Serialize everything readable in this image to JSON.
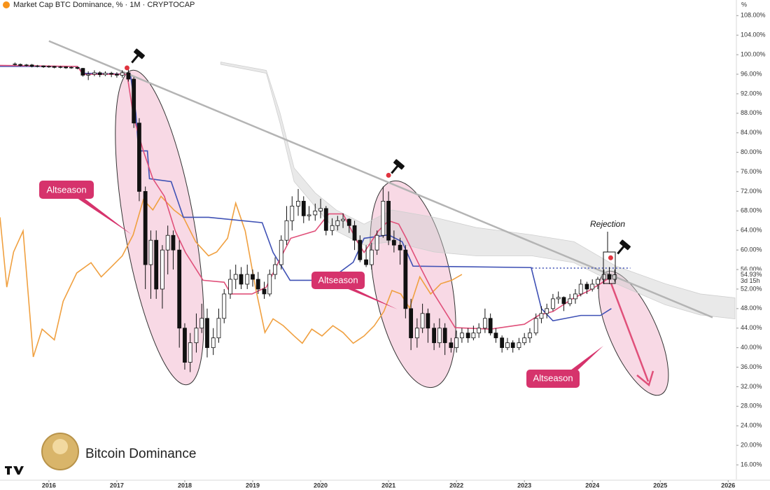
{
  "header": {
    "title": "Market Cap BTC Dominance, % · 1M · CRYPTOCAP"
  },
  "chart_data": {
    "type": "candlestick",
    "axis_unit": "%",
    "up_color": "#ffffff",
    "down_color": "#111111",
    "x": [
      2015.5,
      2015.58,
      2015.67,
      2015.75,
      2015.83,
      2015.92,
      2016.0,
      2016.08,
      2016.17,
      2016.25,
      2016.33,
      2016.42,
      2016.5,
      2016.58,
      2016.67,
      2016.75,
      2016.83,
      2016.92,
      2017.0,
      2017.08,
      2017.17,
      2017.25,
      2017.33,
      2017.42,
      2017.5,
      2017.58,
      2017.67,
      2017.75,
      2017.83,
      2017.92,
      2018.0,
      2018.08,
      2018.17,
      2018.25,
      2018.33,
      2018.42,
      2018.5,
      2018.58,
      2018.67,
      2018.75,
      2018.83,
      2018.92,
      2019.0,
      2019.08,
      2019.17,
      2019.25,
      2019.33,
      2019.42,
      2019.5,
      2019.58,
      2019.67,
      2019.75,
      2019.83,
      2019.92,
      2020.0,
      2020.08,
      2020.17,
      2020.25,
      2020.33,
      2020.42,
      2020.5,
      2020.58,
      2020.67,
      2020.75,
      2020.83,
      2020.92,
      2021.0,
      2021.08,
      2021.17,
      2021.25,
      2021.33,
      2021.42,
      2021.5,
      2021.58,
      2021.67,
      2021.75,
      2021.83,
      2021.92,
      2022.0,
      2022.08,
      2022.17,
      2022.25,
      2022.33,
      2022.42,
      2022.5,
      2022.58,
      2022.67,
      2022.75,
      2022.83,
      2022.92,
      2023.0,
      2023.08,
      2023.17,
      2023.25,
      2023.33,
      2023.42,
      2023.5,
      2023.58,
      2023.67,
      2023.75,
      2023.83,
      2023.92,
      2024.0,
      2024.08,
      2024.17,
      2024.25,
      2024.33
    ],
    "ohlc": [
      [
        98.1,
        98.4,
        97.8,
        98.0
      ],
      [
        98.0,
        98.2,
        97.6,
        97.8
      ],
      [
        97.8,
        98.1,
        97.6,
        97.9
      ],
      [
        97.9,
        98.1,
        97.4,
        97.6
      ],
      [
        97.6,
        97.9,
        97.4,
        97.7
      ],
      [
        97.7,
        97.8,
        97.3,
        97.5
      ],
      [
        97.5,
        97.8,
        97.3,
        97.6
      ],
      [
        97.6,
        97.7,
        97.2,
        97.4
      ],
      [
        97.4,
        97.7,
        97.2,
        97.5
      ],
      [
        97.5,
        97.6,
        97.1,
        97.3
      ],
      [
        97.3,
        97.6,
        97.1,
        97.4
      ],
      [
        97.4,
        97.5,
        97.0,
        97.2
      ],
      [
        97.2,
        97.3,
        95.5,
        95.8
      ],
      [
        95.8,
        96.6,
        94.8,
        96.0
      ],
      [
        96.0,
        96.8,
        95.6,
        96.3
      ],
      [
        96.3,
        96.6,
        95.4,
        95.9
      ],
      [
        95.9,
        96.6,
        95.6,
        96.2
      ],
      [
        96.2,
        96.5,
        95.4,
        96.0
      ],
      [
        96.0,
        96.4,
        95.3,
        95.8
      ],
      [
        95.8,
        96.8,
        95.3,
        96.3
      ],
      [
        96.3,
        97.3,
        94.5,
        95.0
      ],
      [
        95.0,
        95.4,
        85.0,
        86.0
      ],
      [
        86.0,
        87.0,
        70.0,
        72.0
      ],
      [
        72.0,
        73.0,
        52.0,
        57.0
      ],
      [
        57.0,
        64.0,
        50.0,
        62.0
      ],
      [
        62.0,
        64.0,
        50.0,
        52.0
      ],
      [
        52.0,
        61.0,
        48.0,
        60.0
      ],
      [
        60.0,
        65.0,
        55.0,
        63.0
      ],
      [
        63.0,
        64.0,
        56.0,
        60.0
      ],
      [
        60.0,
        62.0,
        40.0,
        44.0
      ],
      [
        44.0,
        45.0,
        35.5,
        37.0
      ],
      [
        37.0,
        43.0,
        35.0,
        41.0
      ],
      [
        41.0,
        47.0,
        39.0,
        44.0
      ],
      [
        44.0,
        49.0,
        43.0,
        46.0
      ],
      [
        46.0,
        48.0,
        38.0,
        40.0
      ],
      [
        40.0,
        44.0,
        38.5,
        42.0
      ],
      [
        42.0,
        48.0,
        41.0,
        46.0
      ],
      [
        46.0,
        52.0,
        45.0,
        51.0
      ],
      [
        51.0,
        56.0,
        50.0,
        54.0
      ],
      [
        54.0,
        57.0,
        52.0,
        55.0
      ],
      [
        55.0,
        56.5,
        52.0,
        53.0
      ],
      [
        53.0,
        57.0,
        52.0,
        55.0
      ],
      [
        55.0,
        56.0,
        52.5,
        54.0
      ],
      [
        54.0,
        55.5,
        51.0,
        52.0
      ],
      [
        52.0,
        53.5,
        50.0,
        51.0
      ],
      [
        51.0,
        56.0,
        50.5,
        55.0
      ],
      [
        55.0,
        58.5,
        54.0,
        57.0
      ],
      [
        57.0,
        63.0,
        56.0,
        62.0
      ],
      [
        62.0,
        69.0,
        61.0,
        66.0
      ],
      [
        66.0,
        71.0,
        64.0,
        69.0
      ],
      [
        69.0,
        72.5,
        67.0,
        70.0
      ],
      [
        70.0,
        71.0,
        65.5,
        67.0
      ],
      [
        67.0,
        69.0,
        66.0,
        67.2
      ],
      [
        67.2,
        69.5,
        66.0,
        68.0
      ],
      [
        68.0,
        70.5,
        66.5,
        68.5
      ],
      [
        68.5,
        69.0,
        63.0,
        64.0
      ],
      [
        64.0,
        66.5,
        63.0,
        65.0
      ],
      [
        65.0,
        67.0,
        64.0,
        66.0
      ],
      [
        66.0,
        67.5,
        64.5,
        66.3
      ],
      [
        66.3,
        66.5,
        63.5,
        65.0
      ],
      [
        65.0,
        66.0,
        60.0,
        62.0
      ],
      [
        62.0,
        63.0,
        57.5,
        58.0
      ],
      [
        58.0,
        61.0,
        56.5,
        57.0
      ],
      [
        57.0,
        61.5,
        56.0,
        60.0
      ],
      [
        60.0,
        64.0,
        59.0,
        63.0
      ],
      [
        63.0,
        73.0,
        62.5,
        70.0
      ],
      [
        70.0,
        72.0,
        61.0,
        62.0
      ],
      [
        62.0,
        64.0,
        59.5,
        61.0
      ],
      [
        61.0,
        62.5,
        57.0,
        60.0
      ],
      [
        60.0,
        61.0,
        46.0,
        48.0
      ],
      [
        48.0,
        50.0,
        39.5,
        42.0
      ],
      [
        42.0,
        46.0,
        40.0,
        44.0
      ],
      [
        44.0,
        49.0,
        43.0,
        47.0
      ],
      [
        47.0,
        48.0,
        41.0,
        44.0
      ],
      [
        44.0,
        45.0,
        39.5,
        41.0
      ],
      [
        41.0,
        46.0,
        40.0,
        44.0
      ],
      [
        44.0,
        45.0,
        38.5,
        41.0
      ],
      [
        41.0,
        42.0,
        39.0,
        40.0
      ],
      [
        40.0,
        43.5,
        39.0,
        42.0
      ],
      [
        42.0,
        44.0,
        41.0,
        43.0
      ],
      [
        43.0,
        44.0,
        41.0,
        42.0
      ],
      [
        42.0,
        44.5,
        41.5,
        43.0
      ],
      [
        43.0,
        45.0,
        42.0,
        44.0
      ],
      [
        44.0,
        48.0,
        43.0,
        46.0
      ],
      [
        46.0,
        47.0,
        42.5,
        43.0
      ],
      [
        43.0,
        44.0,
        41.0,
        42.0
      ],
      [
        42.0,
        42.5,
        39.0,
        40.0
      ],
      [
        40.0,
        42.0,
        39.5,
        41.0
      ],
      [
        41.0,
        41.5,
        39.0,
        40.0
      ],
      [
        40.0,
        42.0,
        39.5,
        41.0
      ],
      [
        41.0,
        43.0,
        40.5,
        42.0
      ],
      [
        42.0,
        44.0,
        41.0,
        43.0
      ],
      [
        43.0,
        47.0,
        42.5,
        46.0
      ],
      [
        46.0,
        48.5,
        45.0,
        47.0
      ],
      [
        47.0,
        49.0,
        46.0,
        48.0
      ],
      [
        48.0,
        51.0,
        47.5,
        50.0
      ],
      [
        50.0,
        51.5,
        49.0,
        50.3
      ],
      [
        50.3,
        50.5,
        47.5,
        49.0
      ],
      [
        49.0,
        51.0,
        48.5,
        50.0
      ],
      [
        50.0,
        52.0,
        49.0,
        51.0
      ],
      [
        51.0,
        54.0,
        50.5,
        53.0
      ],
      [
        53.0,
        53.5,
        51.0,
        52.0
      ],
      [
        52.0,
        54.0,
        51.5,
        53.0
      ],
      [
        53.0,
        54.5,
        52.0,
        54.0
      ],
      [
        54.0,
        56.0,
        53.0,
        55.0
      ],
      [
        55.0,
        56.5,
        53.0,
        54.0
      ],
      [
        54.0,
        56.0,
        53.5,
        54.93
      ]
    ],
    "xlim": [
      2015.28,
      2026.1
    ],
    "xticks": [
      2016,
      2017,
      2018,
      2019,
      2020,
      2021,
      2022,
      2023,
      2024,
      2025,
      2026
    ],
    "ylim": [
      13,
      111.2
    ],
    "yticks": [
      {
        "value": 108,
        "label": "108.00%"
      },
      {
        "value": 104,
        "label": "104.00%"
      },
      {
        "value": 100,
        "label": "100.00%"
      },
      {
        "value": 96,
        "label": "96.00%"
      },
      {
        "value": 92,
        "label": "92.00%"
      },
      {
        "value": 88,
        "label": "88.00%"
      },
      {
        "value": 84,
        "label": "84.00%"
      },
      {
        "value": 80,
        "label": "80.00%"
      },
      {
        "value": 76,
        "label": "76.00%"
      },
      {
        "value": 72,
        "label": "72.00%"
      },
      {
        "value": 68,
        "label": "68.00%"
      },
      {
        "value": 64,
        "label": "64.00%"
      },
      {
        "value": 60,
        "label": "60.00%"
      },
      {
        "value": 56,
        "label": "56.00%"
      },
      {
        "value": 52,
        "label": "52.00%"
      },
      {
        "value": 48,
        "label": "48.00%"
      },
      {
        "value": 44,
        "label": "44.00%"
      },
      {
        "value": 40,
        "label": "40.00%"
      },
      {
        "value": 36,
        "label": "36.00%"
      },
      {
        "value": 32,
        "label": "32.00%"
      },
      {
        "value": 28,
        "label": "28.00%"
      },
      {
        "value": 24,
        "label": "24.00%"
      },
      {
        "value": 20,
        "label": "20.00%"
      },
      {
        "value": 16,
        "label": "16.00%"
      }
    ],
    "cloud": {
      "color": "#cfcfcf",
      "x": [
        2018.53,
        2019.2,
        2019.4,
        2019.61,
        2019.92,
        2020.23,
        2020.64,
        2021.05,
        2021.67,
        2022.29,
        2023.11,
        2023.73,
        2024.35,
        2025.07,
        2025.59,
        2026.1
      ],
      "upper": [
        98.5,
        96.8,
        88.2,
        76.8,
        71.7,
        68.2,
        65.3,
        68.2,
        66.7,
        64.6,
        63.1,
        61.7,
        56.7,
        53.1,
        51.0,
        50.2
      ],
      "lower": [
        98.0,
        96.2,
        86.1,
        74.0,
        68.9,
        63.9,
        61.0,
        61.7,
        59.6,
        58.8,
        58.8,
        57.4,
        53.1,
        48.8,
        46.7,
        45.9
      ]
    },
    "lines": [
      {
        "color": "#f0a040",
        "x": [
          2015.28,
          2015.38,
          2015.48,
          2015.62,
          2015.77,
          2015.9,
          2016.08,
          2016.21,
          2016.41,
          2016.62,
          2016.77,
          2016.93,
          2017.08,
          2017.24,
          2017.39,
          2017.53,
          2017.65,
          2017.84,
          2017.98,
          2018.16,
          2018.35,
          2018.47,
          2018.63,
          2018.75,
          2018.89,
          2019.04,
          2019.18,
          2019.3,
          2019.45,
          2019.61,
          2019.73,
          2019.87,
          2020.02,
          2020.18,
          2020.33,
          2020.48,
          2020.64,
          2020.79,
          2020.93,
          2021.05,
          2021.18,
          2021.31,
          2021.46,
          2021.62,
          2021.77,
          2021.93,
          2022.08
        ],
        "values": [
          66.7,
          52.4,
          59.6,
          63.9,
          38.1,
          43.8,
          41.6,
          49.5,
          55.3,
          57.4,
          54.5,
          56.7,
          58.8,
          63.1,
          70.3,
          68.2,
          71.0,
          68.2,
          66.7,
          61.7,
          58.8,
          59.6,
          62.4,
          69.6,
          63.9,
          52.4,
          43.1,
          45.9,
          44.5,
          42.4,
          40.9,
          43.8,
          42.4,
          44.5,
          43.1,
          40.9,
          42.4,
          44.5,
          47.4,
          51.7,
          51.0,
          48.1,
          54.5,
          51.0,
          53.1,
          53.8,
          55.0
        ]
      },
      {
        "color": "#3f51b5",
        "x": [
          2015.28,
          2016.42,
          2016.5,
          2017.2,
          2017.28,
          2017.32,
          2017.45,
          2017.48,
          2017.8,
          2017.98,
          2018.35,
          2019.14,
          2019.3,
          2019.55,
          2020.12,
          2020.48,
          2020.64,
          2021.0,
          2021.2,
          2021.36,
          2023.1,
          2023.25,
          2023.42,
          2023.83,
          2024.12,
          2024.28
        ],
        "values": [
          97.6,
          97.6,
          96.2,
          96.0,
          88.0,
          80.3,
          80.3,
          74.6,
          74.0,
          66.7,
          66.7,
          65.6,
          59.5,
          53.8,
          53.8,
          57.5,
          62.4,
          63.1,
          61.7,
          56.7,
          56.4,
          48.0,
          45.5,
          46.6,
          46.6,
          48.0
        ]
      },
      {
        "color": "#e0507a",
        "x": [
          2015.28,
          2016.42,
          2016.5,
          2017.15,
          2017.25,
          2017.39,
          2017.53,
          2017.7,
          2017.86,
          2018.01,
          2018.27,
          2018.58,
          2018.68,
          2018.99,
          2019.2,
          2019.4,
          2019.56,
          2019.92,
          2020.12,
          2020.33,
          2020.54,
          2020.64,
          2020.85,
          2021.0,
          2021.15,
          2021.26,
          2021.46,
          2021.67,
          2021.98,
          2022.5,
          2023.0,
          2023.22,
          2023.42,
          2023.73,
          2023.94,
          2024.12,
          2024.27
        ],
        "values": [
          97.8,
          97.6,
          96.0,
          96.0,
          87.0,
          80.3,
          74.6,
          71.0,
          63.9,
          59.5,
          53.8,
          53.4,
          51.0,
          51.0,
          52.4,
          58.1,
          62.4,
          63.9,
          67.4,
          67.4,
          61.7,
          59.5,
          63.9,
          66.0,
          65.3,
          62.4,
          56.7,
          51.0,
          44.1,
          43.8,
          44.8,
          46.7,
          47.4,
          50.2,
          51.6,
          53.1,
          54.5
        ]
      }
    ],
    "trendline": {
      "color": "#b4b4b4",
      "x": [
        2016.0,
        2025.77
      ],
      "values": [
        102.8,
        46.2
      ]
    },
    "resistance": {
      "color": "#3f51b5",
      "value": 56.3,
      "x": [
        2023.11,
        2024.56
      ]
    },
    "signals": {
      "color": "#e0343f",
      "x": [
        2017.15,
        2021.0,
        2024.27
      ],
      "values": [
        97.3,
        75.3,
        58.4
      ]
    },
    "last_price": {
      "value": 54.93,
      "label": "54.93%",
      "countdown": "3d 15h"
    }
  },
  "annotations": {
    "altseason": [
      "Altseason",
      "Altseason",
      "Altseason"
    ],
    "rejection": "Rejection"
  },
  "watermark": {
    "brand": "Bitcoin Dominance"
  }
}
